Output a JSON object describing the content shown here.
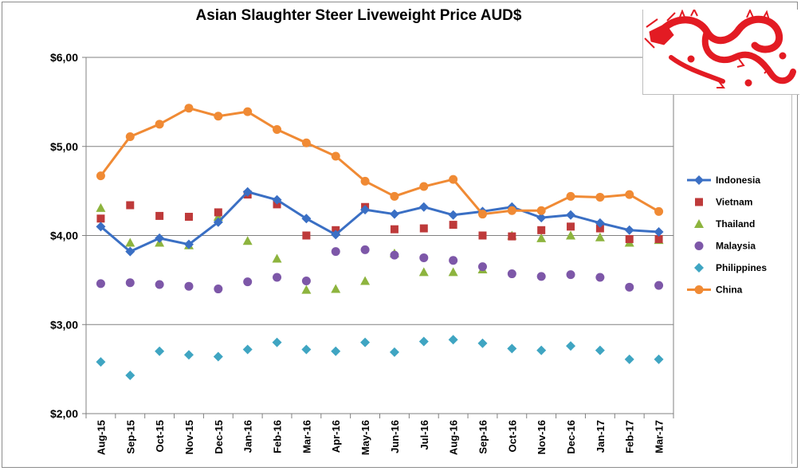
{
  "chart_data": {
    "type": "line",
    "title": "Asian Slaughter Steer Liveweight Price AUD$",
    "xlabel": "",
    "ylabel": "",
    "ylim": [
      2,
      6
    ],
    "yticks": [
      "$2,00",
      "$3,00",
      "$4,00",
      "$5,00",
      "$6,00"
    ],
    "ytick_values": [
      2,
      3,
      4,
      5,
      6
    ],
    "categories": [
      "Aug-15",
      "Sep-15",
      "Oct-15",
      "Nov-15",
      "Dec-15",
      "Jan-16",
      "Feb-16",
      "Mar-16",
      "Apr-16",
      "May-16",
      "Jun-16",
      "Jul-16",
      "Aug-16",
      "Sep-16",
      "Oct-16",
      "Nov-16",
      "Dec-16",
      "Jan-17",
      "Feb-17",
      "Mar-17"
    ],
    "grid": true,
    "legend_position": "right",
    "series": [
      {
        "name": "Indonesia",
        "style": "line",
        "marker": "diamond",
        "color": "#3a6fc4",
        "values": [
          4.1,
          3.82,
          3.97,
          3.9,
          4.15,
          4.49,
          4.4,
          4.19,
          4.01,
          4.29,
          4.24,
          4.32,
          4.23,
          4.27,
          4.32,
          4.2,
          4.23,
          4.14,
          4.06,
          4.04
        ]
      },
      {
        "name": "Vietnam",
        "style": "scatter",
        "marker": "square",
        "color": "#be3a3a",
        "values": [
          4.19,
          4.34,
          4.22,
          4.21,
          4.26,
          4.46,
          4.35,
          4.0,
          4.06,
          4.32,
          4.07,
          4.08,
          4.12,
          4.0,
          3.99,
          4.06,
          4.1,
          4.08,
          3.96,
          3.96
        ]
      },
      {
        "name": "Thailand",
        "style": "scatter",
        "marker": "triangle",
        "color": "#8db43e",
        "values": [
          4.31,
          3.92,
          3.92,
          3.89,
          4.21,
          3.94,
          3.74,
          3.39,
          3.4,
          3.49,
          3.8,
          3.59,
          3.59,
          3.62,
          4.0,
          3.97,
          4.0,
          3.98,
          3.92,
          3.95
        ]
      },
      {
        "name": "Malaysia",
        "style": "scatter",
        "marker": "circle",
        "color": "#7d57a8",
        "values": [
          3.46,
          3.47,
          3.45,
          3.43,
          3.4,
          3.48,
          3.53,
          3.49,
          3.82,
          3.84,
          3.78,
          3.75,
          3.72,
          3.65,
          3.57,
          3.54,
          3.56,
          3.53,
          3.42,
          3.44
        ]
      },
      {
        "name": "Philippines",
        "style": "scatter",
        "marker": "diamond",
        "color": "#3fa5c2",
        "values": [
          2.58,
          2.43,
          2.7,
          2.66,
          2.64,
          2.72,
          2.8,
          2.72,
          2.7,
          2.8,
          2.69,
          2.81,
          2.83,
          2.79,
          2.73,
          2.71,
          2.76,
          2.71,
          2.61,
          2.61
        ]
      },
      {
        "name": "China",
        "style": "line",
        "marker": "circle",
        "color": "#f08a34",
        "values": [
          4.67,
          5.11,
          5.25,
          5.43,
          5.34,
          5.39,
          5.19,
          5.04,
          4.89,
          4.61,
          4.44,
          4.55,
          4.63,
          4.24,
          4.28,
          4.28,
          4.44,
          4.43,
          4.46,
          4.27
        ]
      }
    ]
  },
  "decoration": {
    "image": "red-chinese-dragon",
    "color": "#e31b23"
  }
}
